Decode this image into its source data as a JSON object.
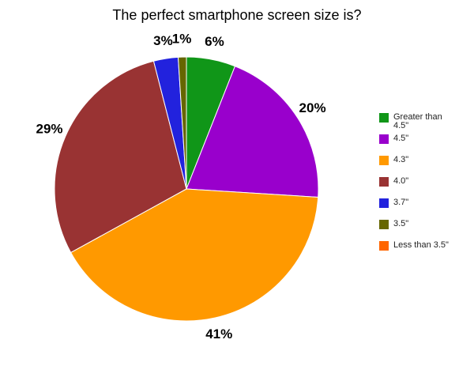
{
  "chart_data": {
    "type": "pie",
    "title": "The perfect smartphone screen size is?",
    "categories": [
      "Greater than 4.5\"",
      "4.5\"",
      "4.3\"",
      "4.0\"",
      "3.7\"",
      "3.5\"",
      "Less than 3.5\""
    ],
    "values": [
      6,
      20,
      41,
      29,
      3,
      1,
      0
    ],
    "value_labels": [
      "6%",
      "20%",
      "41%",
      "29%",
      "3%",
      "1%",
      null
    ],
    "colors": [
      "#109618",
      "#9900cc",
      "#ff9900",
      "#993333",
      "#2222dd",
      "#666600",
      "#ff6600"
    ],
    "legend": "right"
  }
}
